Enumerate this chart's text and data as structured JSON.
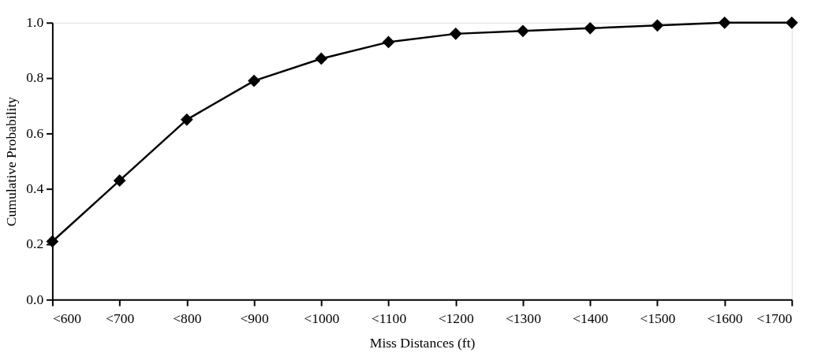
{
  "chart_data": {
    "type": "line",
    "xlabel": "Miss Distances (ft)",
    "ylabel": "Cumulative Probability",
    "categories": [
      "<600",
      "<700",
      "<800",
      "<900",
      "<1000",
      "<1100",
      "<1200",
      "<1300",
      "<1400",
      "<1500",
      "<1600",
      "<1700"
    ],
    "series": [
      {
        "color": "#000000",
        "values": [
          0.21,
          0.43,
          0.65,
          0.79,
          0.87,
          0.93,
          0.96,
          0.97,
          0.98,
          0.99,
          1.0,
          1.0
        ]
      }
    ],
    "ylim": [
      0,
      1
    ],
    "yticks": [
      {
        "value": 0,
        "label": "0.0"
      },
      {
        "value": 0.2,
        "label": "0.2"
      },
      {
        "value": 0.4,
        "label": "0.4"
      },
      {
        "value": 0.6,
        "label": "0.6"
      },
      {
        "value": 0.8,
        "label": "0.8"
      },
      {
        "value": 1,
        "label": "1.0"
      }
    ],
    "grid": false,
    "marker": "diamond",
    "line_style": "solid"
  }
}
